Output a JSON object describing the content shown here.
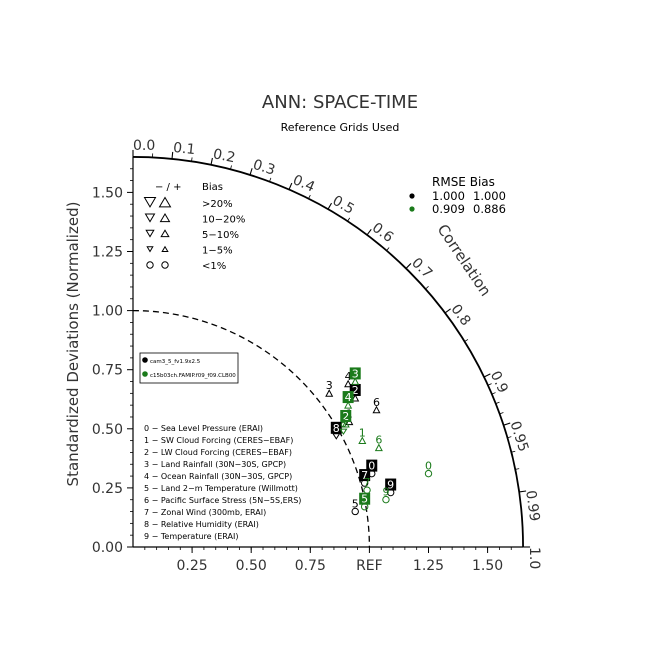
{
  "chart_data": {
    "type": "scatter",
    "title": "ANN: SPACE-TIME",
    "subtitle": "Reference Grids Used",
    "ylabel": "Standardized Deviations (Normalized)",
    "arc_label": "Correlation",
    "ref_label": "REF",
    "xlim": [
      0,
      1.65
    ],
    "ylim": [
      0,
      1.65
    ],
    "y_ticks": [
      "0.00",
      "0.25",
      "0.50",
      "0.75",
      "1.00",
      "1.25",
      "1.50"
    ],
    "x_ticks": [
      "0.25",
      "0.50",
      "0.75",
      "1.25",
      "1.50"
    ],
    "corr_ticks": [
      "0.0",
      "0.1",
      "0.2",
      "0.3",
      "0.4",
      "0.5",
      "0.6",
      "0.7",
      "0.8",
      "0.9",
      "0.95",
      "0.99",
      "1.0"
    ],
    "rmse_header": "RMSE  Bias",
    "rmse_rows": [
      {
        "rmse": "1.000",
        "bias": "1.000",
        "color": "#000000"
      },
      {
        "rmse": "0.909",
        "bias": "0.886",
        "color": "#1a7a1a"
      }
    ],
    "bias_legend": {
      "header_sign": "− / +",
      "header_label": "Bias",
      "rows": [
        ">20%",
        "10−20%",
        "5−10%",
        "1−5%",
        "<1%"
      ]
    },
    "model_legend": [
      {
        "name": "cam3_5_fv1.9x2.5",
        "color": "#000000"
      },
      {
        "name": "c15b03ch.FAMIP.f09_f09.CLB00",
        "color": "#1a7a1a"
      }
    ],
    "variables": [
      "0 − Sea Level Pressure (ERAI)",
      "1 − SW Cloud Forcing (CERES−EBAF)",
      "2 − LW Cloud Forcing (CERES−EBAF)",
      "3 − Land Rainfall (30N−30S, GPCP)",
      "4 − Ocean Rainfall (30N−30S, GPCP)",
      "5 − Land 2−m Temperature (Willmott)",
      "6 − Pacific Surface Stress (5N−5S,ERS)",
      "7 − Zonal Wind (300mb, ERAI)",
      "8 − Relative Humidity (ERAI)",
      "9 − Temperature (ERAI)"
    ],
    "series": [
      {
        "name": "cam3_5_fv1.9x2.5",
        "color": "#000000",
        "points": [
          {
            "label": "0",
            "x": 1.01,
            "y": 0.34,
            "boxed": true,
            "marker": "circle"
          },
          {
            "label": "1",
            "x": 0.915,
            "y": 0.56,
            "boxed": false,
            "marker": "triangle-up"
          },
          {
            "label": "2",
            "x": 0.94,
            "y": 0.66,
            "boxed": true,
            "marker": "triangle-up"
          },
          {
            "label": "3",
            "x": 0.83,
            "y": 0.68,
            "boxed": false,
            "marker": "triangle-up"
          },
          {
            "label": "4",
            "x": 0.91,
            "y": 0.72,
            "boxed": false,
            "marker": "triangle-up"
          },
          {
            "label": "5",
            "x": 0.94,
            "y": 0.18,
            "boxed": false,
            "marker": "circle"
          },
          {
            "label": "6",
            "x": 1.03,
            "y": 0.61,
            "boxed": false,
            "marker": "triangle-up"
          },
          {
            "label": "7",
            "x": 0.98,
            "y": 0.3,
            "boxed": true,
            "marker": "circle"
          },
          {
            "label": "8",
            "x": 0.86,
            "y": 0.5,
            "boxed": true,
            "marker": "triangle-down"
          },
          {
            "label": "9",
            "x": 1.09,
            "y": 0.26,
            "boxed": true,
            "marker": "circle"
          }
        ]
      },
      {
        "name": "c15b03ch.FAMIP.f09_f09.CLB00",
        "color": "#1a7a1a",
        "points": [
          {
            "label": "0",
            "x": 1.25,
            "y": 0.34,
            "boxed": false,
            "marker": "circle"
          },
          {
            "label": "1",
            "x": 0.97,
            "y": 0.48,
            "boxed": false,
            "marker": "triangle-up"
          },
          {
            "label": "2",
            "x": 0.9,
            "y": 0.55,
            "boxed": true,
            "marker": "triangle-up"
          },
          {
            "label": "3",
            "x": 0.94,
            "y": 0.73,
            "boxed": true,
            "marker": "triangle-up"
          },
          {
            "label": "4",
            "x": 0.91,
            "y": 0.63,
            "boxed": true,
            "marker": "triangle-up"
          },
          {
            "label": "5",
            "x": 0.98,
            "y": 0.2,
            "boxed": true,
            "marker": "circle"
          },
          {
            "label": "6",
            "x": 1.04,
            "y": 0.45,
            "boxed": false,
            "marker": "triangle-up"
          },
          {
            "label": "7",
            "x": 0.99,
            "y": 0.27,
            "boxed": false,
            "marker": "circle"
          },
          {
            "label": "8",
            "x": 0.89,
            "y": 0.52,
            "boxed": false,
            "marker": "triangle-down"
          },
          {
            "label": "9",
            "x": 1.07,
            "y": 0.23,
            "boxed": false,
            "marker": "circle"
          }
        ]
      }
    ]
  }
}
